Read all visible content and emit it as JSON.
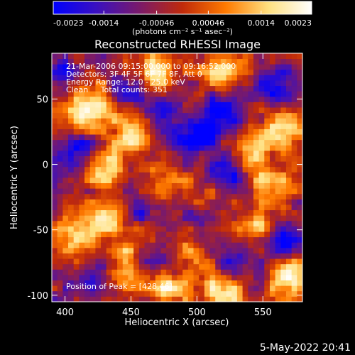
{
  "chart_data": {
    "type": "heatmap",
    "title": "Reconstructed RHESSI Image",
    "xlabel": "Heliocentric X (arcsec)",
    "ylabel": "Heliocentric Y (arcsec)",
    "xlim": [
      390,
      580
    ],
    "ylim": [
      -105,
      85
    ],
    "xticks": [
      400,
      450,
      500,
      550
    ],
    "yticks": [
      -100,
      -50,
      0,
      50
    ],
    "grid": false,
    "colorbar": {
      "position": "top",
      "range": [
        -0.0023,
        0.0023
      ],
      "ticks": [
        "-0.0023",
        "-0.0014",
        "-0.00046",
        "0.00046",
        "0.0014",
        "0.0023"
      ],
      "unit_label": "(photons cm⁻² s⁻¹ asec⁻²)",
      "colors": [
        "#0000ff",
        "#3a10c0",
        "#7a1a6a",
        "#c02a0a",
        "#ff7a00",
        "#ffe080",
        "#ffffff"
      ]
    },
    "annotations": [
      "21-Mar-2006 09:15:00.000 to 09:16:52.000",
      "Detectors: 3F 4F 5F 6F 7F 8F, Att 0",
      "Energy Range: 12.0 - 25.0 keV",
      "Clean     Total counts: 351",
      "Position of Peak = [428,46]"
    ],
    "bright_sources": [
      {
        "x": 428,
        "y": 46,
        "v": 1.0
      },
      {
        "x": 470,
        "y": 70,
        "v": 0.95
      },
      {
        "x": 520,
        "y": 70,
        "v": 0.9
      },
      {
        "x": 565,
        "y": 30,
        "v": 0.95
      },
      {
        "x": 455,
        "y": 25,
        "v": 0.9
      },
      {
        "x": 410,
        "y": 40,
        "v": 0.75
      },
      {
        "x": 432,
        "y": -2,
        "v": 0.95
      },
      {
        "x": 475,
        "y": -15,
        "v": 0.7
      },
      {
        "x": 555,
        "y": -15,
        "v": 0.75
      },
      {
        "x": 505,
        "y": -30,
        "v": 0.6
      },
      {
        "x": 425,
        "y": -45,
        "v": 0.85
      },
      {
        "x": 405,
        "y": -60,
        "v": 0.75
      },
      {
        "x": 455,
        "y": -55,
        "v": 0.7
      },
      {
        "x": 545,
        "y": -50,
        "v": 0.75
      },
      {
        "x": 490,
        "y": -60,
        "v": 0.65
      },
      {
        "x": 570,
        "y": -85,
        "v": 1.0
      },
      {
        "x": 520,
        "y": -95,
        "v": 0.95
      },
      {
        "x": 480,
        "y": -95,
        "v": 0.9
      },
      {
        "x": 445,
        "y": -80,
        "v": 0.6
      },
      {
        "x": 540,
        "y": 10,
        "v": 0.8
      }
    ],
    "dark_regions": [
      {
        "x": 500,
        "y": 25,
        "v": -0.9
      },
      {
        "x": 520,
        "y": 40,
        "v": -0.85
      },
      {
        "x": 470,
        "y": 35,
        "v": -0.7
      },
      {
        "x": 560,
        "y": 60,
        "v": -0.8
      },
      {
        "x": 525,
        "y": -5,
        "v": -0.8
      },
      {
        "x": 460,
        "y": -40,
        "v": -0.7
      },
      {
        "x": 410,
        "y": 10,
        "v": -0.75
      },
      {
        "x": 500,
        "y": -40,
        "v": -0.75
      },
      {
        "x": 565,
        "y": -60,
        "v": -0.85
      },
      {
        "x": 420,
        "y": -90,
        "v": -0.7
      },
      {
        "x": 470,
        "y": -70,
        "v": -0.75
      },
      {
        "x": 530,
        "y": -70,
        "v": -0.7
      },
      {
        "x": 395,
        "y": 70,
        "v": -0.6
      },
      {
        "x": 445,
        "y": 55,
        "v": -0.7
      }
    ]
  },
  "footer": {
    "timestamp": "5-May-2022 20:41"
  }
}
